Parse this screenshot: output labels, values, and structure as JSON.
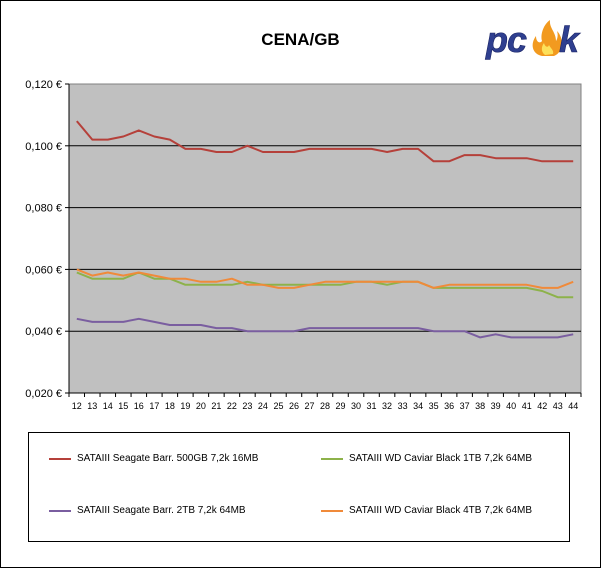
{
  "title": "CENA/GB",
  "logo_text": "pcsk",
  "chart_data": {
    "type": "line",
    "title": "CENA/GB",
    "xlabel": "",
    "ylabel": "",
    "x": [
      12,
      13,
      14,
      15,
      16,
      17,
      18,
      19,
      20,
      21,
      22,
      23,
      24,
      25,
      26,
      27,
      28,
      29,
      30,
      31,
      32,
      33,
      34,
      35,
      36,
      37,
      38,
      39,
      40,
      41,
      42,
      43,
      44
    ],
    "ylim": [
      0.02,
      0.12
    ],
    "yticks": [
      "0,020 €",
      "0,040 €",
      "0,060 €",
      "0,080 €",
      "0,100 €",
      "0,120 €"
    ],
    "grid": true,
    "legend_position": "bottom",
    "series": [
      {
        "name": "SATAIII Seagate Barr. 500GB 7,2k 16MB",
        "color": "#b5403a",
        "values": [
          0.108,
          0.102,
          0.102,
          0.103,
          0.105,
          0.103,
          0.102,
          0.099,
          0.099,
          0.098,
          0.098,
          0.1,
          0.098,
          0.098,
          0.098,
          0.099,
          0.099,
          0.099,
          0.099,
          0.099,
          0.098,
          0.099,
          0.099,
          0.095,
          0.095,
          0.097,
          0.097,
          0.096,
          0.096,
          0.096,
          0.095,
          0.095,
          0.095
        ]
      },
      {
        "name": "SATAIII WD Caviar Black 1TB 7,2k 64MB",
        "color": "#8db24a",
        "values": [
          0.059,
          0.057,
          0.057,
          0.057,
          0.059,
          0.057,
          0.057,
          0.055,
          0.055,
          0.055,
          0.055,
          0.056,
          0.055,
          0.055,
          0.055,
          0.055,
          0.055,
          0.055,
          0.056,
          0.056,
          0.055,
          0.056,
          0.056,
          0.054,
          0.054,
          0.054,
          0.054,
          0.054,
          0.054,
          0.054,
          0.053,
          0.051,
          0.051
        ]
      },
      {
        "name": "SATAIII Seagate Barr. 2TB 7,2k 64MB",
        "color": "#7a5ea0",
        "values": [
          0.044,
          0.043,
          0.043,
          0.043,
          0.044,
          0.043,
          0.042,
          0.042,
          0.042,
          0.041,
          0.041,
          0.04,
          0.04,
          0.04,
          0.04,
          0.041,
          0.041,
          0.041,
          0.041,
          0.041,
          0.041,
          0.041,
          0.041,
          0.04,
          0.04,
          0.04,
          0.038,
          0.039,
          0.038,
          0.038,
          0.038,
          0.038,
          0.039
        ]
      },
      {
        "name": "SATAIII WD Caviar Black 4TB 7,2k 64MB",
        "color": "#f08a3a",
        "values": [
          0.06,
          0.058,
          0.059,
          0.058,
          0.059,
          0.058,
          0.057,
          0.057,
          0.056,
          0.056,
          0.057,
          0.055,
          0.055,
          0.054,
          0.054,
          0.055,
          0.056,
          0.056,
          0.056,
          0.056,
          0.056,
          0.056,
          0.056,
          0.054,
          0.055,
          0.055,
          0.055,
          0.055,
          0.055,
          0.055,
          0.054,
          0.054,
          0.056
        ]
      }
    ]
  }
}
